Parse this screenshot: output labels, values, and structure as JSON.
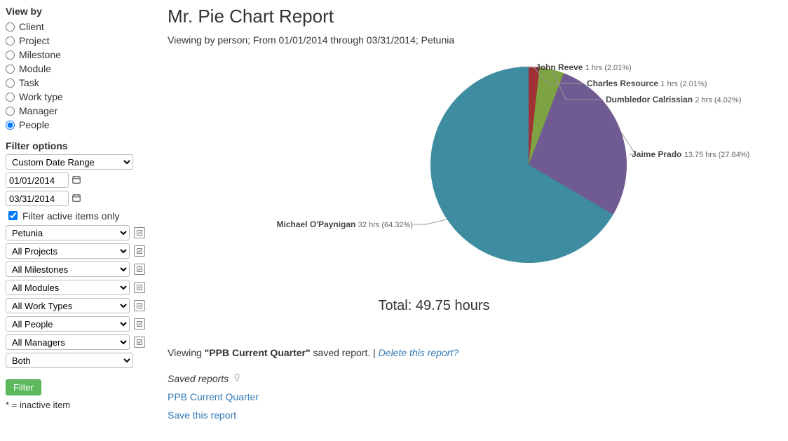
{
  "sidebar": {
    "view_by_label": "View by",
    "radios": [
      {
        "label": "Client",
        "checked": false
      },
      {
        "label": "Project",
        "checked": false
      },
      {
        "label": "Milestone",
        "checked": false
      },
      {
        "label": "Module",
        "checked": false
      },
      {
        "label": "Task",
        "checked": false
      },
      {
        "label": "Work type",
        "checked": false
      },
      {
        "label": "Manager",
        "checked": false
      },
      {
        "label": "People",
        "checked": true
      }
    ],
    "filter_label": "Filter options",
    "date_range_select": "Custom Date Range",
    "date_from": "01/01/2014",
    "date_to": "03/31/2014",
    "active_items_label": "Filter active items only",
    "active_items_checked": true,
    "selects": [
      "Petunia",
      "All Projects",
      "All Milestones",
      "All Modules",
      "All Work Types",
      "All People",
      "All Managers",
      "Both"
    ],
    "filter_button": "Filter",
    "footnote": "* = inactive item"
  },
  "report": {
    "title": "Mr. Pie Chart Report",
    "subtitle": "Viewing by person; From 01/01/2014 through 03/31/2014; Petunia",
    "total_label": "Total: 49.75 hours",
    "viewing_prefix": "Viewing ",
    "viewing_bold": "\"PPB Current Quarter\"",
    "viewing_suffix": " saved report. | ",
    "delete_link": "Delete this report?",
    "saved_reports_label": "Saved reports",
    "saved_report_link": "PPB Current Quarter",
    "save_this_link": "Save this report"
  },
  "chart": {
    "type": "pie",
    "background_color": "#ffffff",
    "label_fontsize": 12,
    "label_name_weight": 700,
    "label_value_weight": 400,
    "slices": [
      {
        "name": "Michael O'Paynigan",
        "value": "32 hrs (64.32%)",
        "pct": 64.32,
        "color": "#3d8ca0"
      },
      {
        "name": "John Reeve",
        "value": "1 hrs (2.01%)",
        "pct": 2.01,
        "color": "#2f66a8"
      },
      {
        "name": "Charles Resource",
        "value": "1 hrs (2.01%)",
        "pct": 2.01,
        "color": "#a03235"
      },
      {
        "name": "Dumbledor Calrissian",
        "value": "2 hrs (4.02%)",
        "pct": 4.02,
        "color": "#7da343"
      },
      {
        "name": "Jaime Prado",
        "value": "13.75 hrs (27.64%)",
        "pct": 27.64,
        "color": "#6f5a92"
      }
    ]
  }
}
